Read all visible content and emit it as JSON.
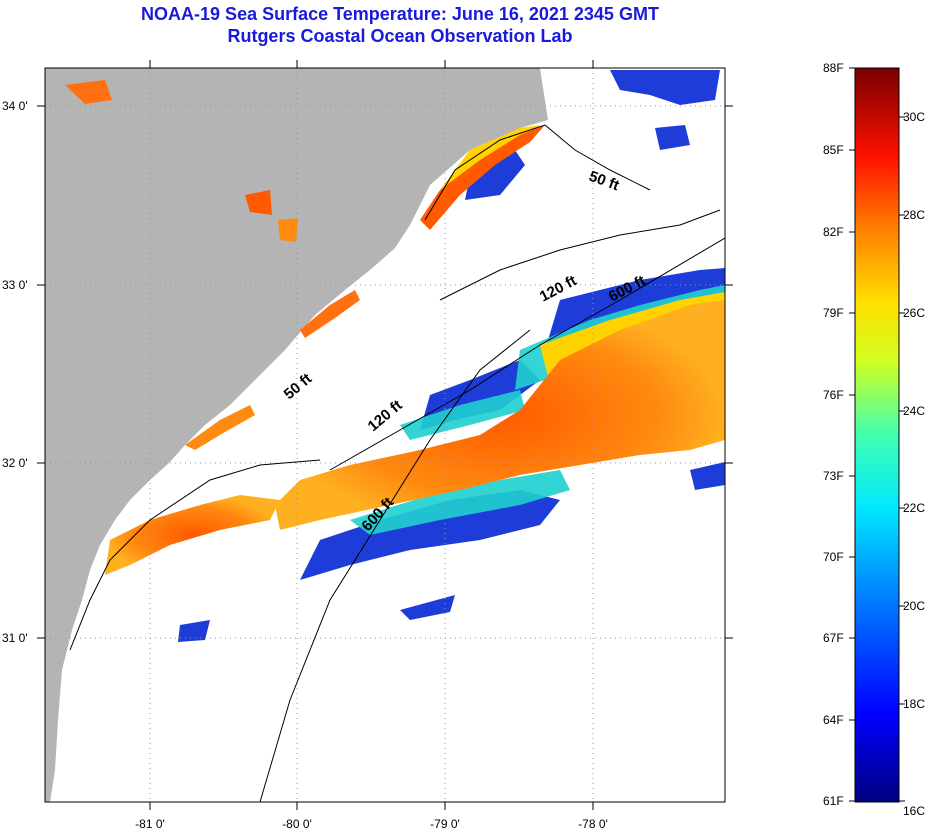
{
  "title": "NOAA-19 Sea Surface Temperature:  June 16, 2021 2345 GMT",
  "subtitle": "Rutgers Coastal Ocean Observation Lab",
  "map": {
    "lon_labels": [
      "-81 0'",
      "-80 0'",
      "-79 0'",
      "-78 0'"
    ],
    "lat_labels": [
      "34 0'",
      "33 0'",
      "32 0'",
      "31 0'"
    ],
    "depth_labels": [
      "50 ft",
      "120 ft",
      "600 ft",
      "50 ft",
      "120 ft",
      "600 ft"
    ],
    "colors": {
      "land": "#b4b4b4",
      "warm": "#ff6a10",
      "cool": "#1e3cd8"
    }
  },
  "colorbar": {
    "fahrenheit": [
      "88F",
      "85F",
      "82F",
      "79F",
      "76F",
      "73F",
      "70F",
      "67F",
      "64F",
      "61F"
    ],
    "celsius": [
      "30C",
      "28C",
      "26C",
      "24C",
      "22C",
      "20C",
      "18C",
      "16C"
    ]
  }
}
